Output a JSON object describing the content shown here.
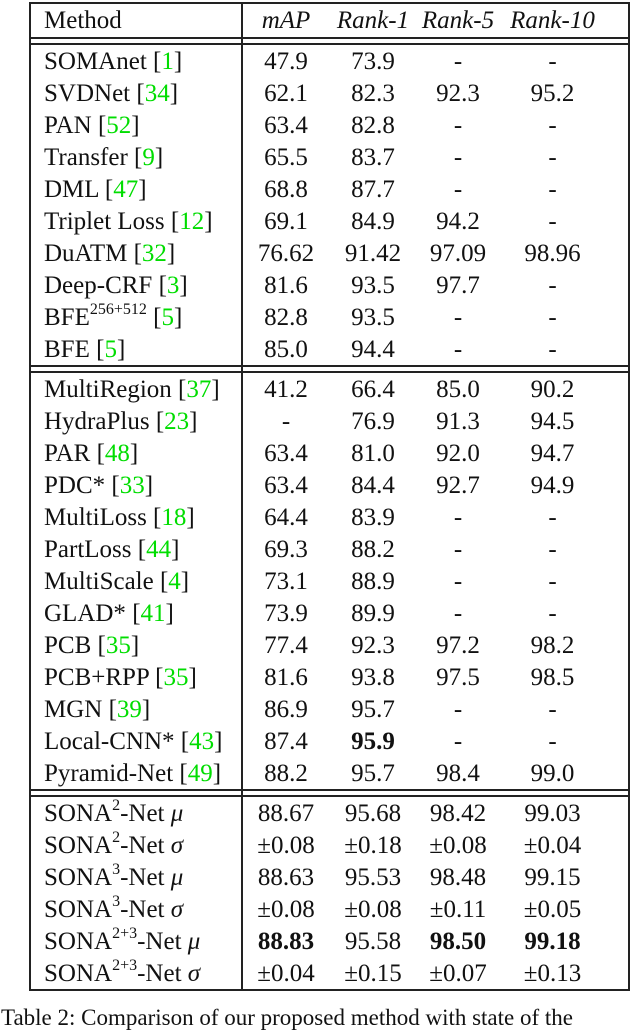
{
  "table": {
    "header": {
      "method_label": "Method",
      "columns": [
        "mAP",
        "Rank-1",
        "Rank-5",
        "Rank-10"
      ]
    },
    "colors": {
      "citation_green": "#00dd00",
      "border": "#222222"
    },
    "sections": [
      {
        "rows": [
          {
            "method": [
              {
                "k": "text",
                "t": "SOMAnet "
              },
              {
                "k": "cite",
                "t": "1"
              }
            ],
            "cells": [
              "47.9",
              "73.9",
              "-",
              "-"
            ]
          },
          {
            "method": [
              {
                "k": "text",
                "t": "SVDNet "
              },
              {
                "k": "cite",
                "t": "34"
              }
            ],
            "cells": [
              "62.1",
              "82.3",
              "92.3",
              "95.2"
            ]
          },
          {
            "method": [
              {
                "k": "text",
                "t": "PAN "
              },
              {
                "k": "cite",
                "t": "52"
              }
            ],
            "cells": [
              "63.4",
              "82.8",
              "-",
              "-"
            ]
          },
          {
            "method": [
              {
                "k": "text",
                "t": "Transfer "
              },
              {
                "k": "cite",
                "t": "9"
              }
            ],
            "cells": [
              "65.5",
              "83.7",
              "-",
              "-"
            ]
          },
          {
            "method": [
              {
                "k": "text",
                "t": "DML "
              },
              {
                "k": "cite",
                "t": "47"
              }
            ],
            "cells": [
              "68.8",
              "87.7",
              "-",
              "-"
            ]
          },
          {
            "method": [
              {
                "k": "text",
                "t": "Triplet Loss "
              },
              {
                "k": "cite",
                "t": "12"
              }
            ],
            "cells": [
              "69.1",
              "84.9",
              "94.2",
              "-"
            ]
          },
          {
            "method": [
              {
                "k": "text",
                "t": "DuATM "
              },
              {
                "k": "cite",
                "t": "32"
              }
            ],
            "cells": [
              "76.62",
              "91.42",
              "97.09",
              "98.96"
            ]
          },
          {
            "method": [
              {
                "k": "text",
                "t": "Deep-CRF "
              },
              {
                "k": "cite",
                "t": "3"
              }
            ],
            "cells": [
              "81.6",
              "93.5",
              "97.7",
              "-"
            ]
          },
          {
            "method": [
              {
                "k": "text",
                "t": "BFE"
              },
              {
                "k": "sup",
                "t": "256+512"
              },
              {
                "k": "text",
                "t": " "
              },
              {
                "k": "cite",
                "t": "5"
              }
            ],
            "cells": [
              "82.8",
              "93.5",
              "-",
              "-"
            ]
          },
          {
            "method": [
              {
                "k": "text",
                "t": "BFE "
              },
              {
                "k": "cite",
                "t": "5"
              }
            ],
            "cells": [
              "85.0",
              "94.4",
              "-",
              "-"
            ]
          }
        ]
      },
      {
        "rows": [
          {
            "method": [
              {
                "k": "text",
                "t": "MultiRegion "
              },
              {
                "k": "cite",
                "t": "37"
              }
            ],
            "cells": [
              "41.2",
              "66.4",
              "85.0",
              "90.2"
            ]
          },
          {
            "method": [
              {
                "k": "text",
                "t": "HydraPlus "
              },
              {
                "k": "cite",
                "t": "23"
              }
            ],
            "cells": [
              "-",
              "76.9",
              "91.3",
              "94.5"
            ]
          },
          {
            "method": [
              {
                "k": "text",
                "t": "PAR "
              },
              {
                "k": "cite",
                "t": "48"
              }
            ],
            "cells": [
              "63.4",
              "81.0",
              "92.0",
              "94.7"
            ]
          },
          {
            "method": [
              {
                "k": "text",
                "t": "PDC* "
              },
              {
                "k": "cite",
                "t": "33"
              }
            ],
            "cells": [
              "63.4",
              "84.4",
              "92.7",
              "94.9"
            ]
          },
          {
            "method": [
              {
                "k": "text",
                "t": "MultiLoss "
              },
              {
                "k": "cite",
                "t": "18"
              }
            ],
            "cells": [
              "64.4",
              "83.9",
              "-",
              "-"
            ]
          },
          {
            "method": [
              {
                "k": "text",
                "t": "PartLoss "
              },
              {
                "k": "cite",
                "t": "44"
              }
            ],
            "cells": [
              "69.3",
              "88.2",
              "-",
              "-"
            ]
          },
          {
            "method": [
              {
                "k": "text",
                "t": "MultiScale "
              },
              {
                "k": "cite",
                "t": "4"
              }
            ],
            "cells": [
              "73.1",
              "88.9",
              "-",
              "-"
            ]
          },
          {
            "method": [
              {
                "k": "text",
                "t": "GLAD* "
              },
              {
                "k": "cite",
                "t": "41"
              }
            ],
            "cells": [
              "73.9",
              "89.9",
              "-",
              "-"
            ]
          },
          {
            "method": [
              {
                "k": "text",
                "t": "PCB "
              },
              {
                "k": "cite",
                "t": "35"
              }
            ],
            "cells": [
              "77.4",
              "92.3",
              "97.2",
              "98.2"
            ]
          },
          {
            "method": [
              {
                "k": "text",
                "t": "PCB+RPP "
              },
              {
                "k": "cite",
                "t": "35"
              }
            ],
            "cells": [
              "81.6",
              "93.8",
              "97.5",
              "98.5"
            ]
          },
          {
            "method": [
              {
                "k": "text",
                "t": "MGN "
              },
              {
                "k": "cite",
                "t": "39"
              }
            ],
            "cells": [
              "86.9",
              "95.7",
              "-",
              "-"
            ]
          },
          {
            "method": [
              {
                "k": "text",
                "t": "Local-CNN* "
              },
              {
                "k": "cite",
                "t": "43"
              }
            ],
            "cells": [
              "87.4",
              {
                "v": "95.9",
                "b": true
              },
              "-",
              "-"
            ]
          },
          {
            "method": [
              {
                "k": "text",
                "t": "Pyramid-Net "
              },
              {
                "k": "cite",
                "t": "49"
              }
            ],
            "cells": [
              "88.2",
              "95.7",
              "98.4",
              "99.0"
            ]
          }
        ]
      },
      {
        "rows": [
          {
            "method": [
              {
                "k": "text",
                "t": "SONA"
              },
              {
                "k": "sup",
                "t": "2"
              },
              {
                "k": "text",
                "t": "-Net "
              },
              {
                "k": "greek",
                "t": "μ"
              }
            ],
            "cells": [
              "88.67",
              "95.68",
              "98.42",
              "99.03"
            ]
          },
          {
            "method": [
              {
                "k": "text",
                "t": "SONA"
              },
              {
                "k": "sup",
                "t": "2"
              },
              {
                "k": "text",
                "t": "-Net "
              },
              {
                "k": "greek",
                "t": "σ"
              }
            ],
            "cells": [
              "±0.08",
              "±0.18",
              "±0.08",
              "±0.04"
            ]
          },
          {
            "method": [
              {
                "k": "text",
                "t": "SONA"
              },
              {
                "k": "sup",
                "t": "3"
              },
              {
                "k": "text",
                "t": "-Net "
              },
              {
                "k": "greek",
                "t": "μ"
              }
            ],
            "cells": [
              "88.63",
              "95.53",
              "98.48",
              "99.15"
            ]
          },
          {
            "method": [
              {
                "k": "text",
                "t": "SONA"
              },
              {
                "k": "sup",
                "t": "3"
              },
              {
                "k": "text",
                "t": "-Net "
              },
              {
                "k": "greek",
                "t": "σ"
              }
            ],
            "cells": [
              "±0.08",
              "±0.08",
              "±0.11",
              "±0.05"
            ]
          },
          {
            "method": [
              {
                "k": "text",
                "t": "SONA"
              },
              {
                "k": "sup",
                "t": "2+3"
              },
              {
                "k": "text",
                "t": "-Net "
              },
              {
                "k": "greek",
                "t": "μ"
              }
            ],
            "cells": [
              {
                "v": "88.83",
                "b": true
              },
              "95.58",
              {
                "v": "98.50",
                "b": true
              },
              {
                "v": "99.18",
                "b": true
              }
            ]
          },
          {
            "method": [
              {
                "k": "text",
                "t": "SONA"
              },
              {
                "k": "sup",
                "t": "2+3"
              },
              {
                "k": "text",
                "t": "-Net "
              },
              {
                "k": "greek",
                "t": "σ"
              }
            ],
            "cells": [
              "±0.04",
              "±0.15",
              "±0.07",
              "±0.13"
            ]
          }
        ]
      }
    ],
    "caption": "Table 2: Comparison of our proposed method with state of the"
  }
}
